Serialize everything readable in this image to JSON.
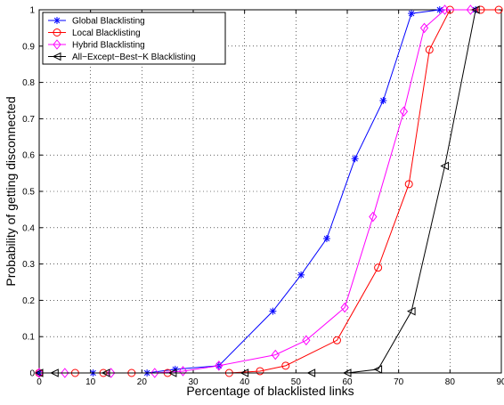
{
  "chart_data": {
    "type": "line",
    "xlabel": "Percentage of blacklisted links",
    "ylabel": "Probability of getting disconnected",
    "xlim": [
      0,
      90
    ],
    "ylim": [
      0,
      1
    ],
    "xticks": [
      "0",
      "10",
      "20",
      "30",
      "40",
      "50",
      "60",
      "70",
      "80",
      "90"
    ],
    "yticks": [
      "0",
      "0.1",
      "0.2",
      "0.3",
      "0.4",
      "0.5",
      "0.6",
      "0.7",
      "0.8",
      "0.9",
      "1"
    ],
    "grid": true,
    "legend_position": "top-left",
    "series": [
      {
        "name": "Global Blacklisting",
        "color": "#0000ff",
        "marker": "asterisk",
        "x": [
          0,
          10.5,
          21,
          26.5,
          35,
          45.5,
          51,
          56,
          61.5,
          67,
          72.5,
          78,
          85
        ],
        "y": [
          0,
          0,
          0,
          0.01,
          0.02,
          0.17,
          0.27,
          0.37,
          0.59,
          0.75,
          0.99,
          1,
          1
        ]
      },
      {
        "name": "Local Blacklisting",
        "color": "#ff0000",
        "marker": "circle",
        "x": [
          0,
          7,
          12.5,
          18,
          25,
          37,
          43,
          48,
          58,
          66,
          72,
          76,
          80,
          86,
          89.5
        ],
        "y": [
          0,
          0,
          0,
          0,
          0,
          0,
          0.005,
          0.02,
          0.09,
          0.29,
          0.52,
          0.89,
          1,
          1,
          1
        ]
      },
      {
        "name": "Hybrid Blacklisting",
        "color": "#ff00ff",
        "marker": "diamond",
        "x": [
          0,
          5,
          14,
          22.5,
          28,
          35,
          46,
          52,
          59.5,
          65,
          71,
          75,
          79,
          84
        ],
        "y": [
          0,
          0,
          0,
          0,
          0.005,
          0.02,
          0.05,
          0.09,
          0.18,
          0.43,
          0.72,
          0.95,
          1,
          1
        ]
      },
      {
        "name": "All−Except−Best−K Blacklisting",
        "color": "#000000",
        "marker": "triangle-left",
        "x": [
          0,
          3,
          13,
          26,
          40,
          53,
          60,
          66,
          72.5,
          79,
          85
        ],
        "y": [
          0,
          0,
          0,
          0,
          0,
          0,
          0,
          0.01,
          0.17,
          0.57,
          1
        ]
      }
    ]
  }
}
